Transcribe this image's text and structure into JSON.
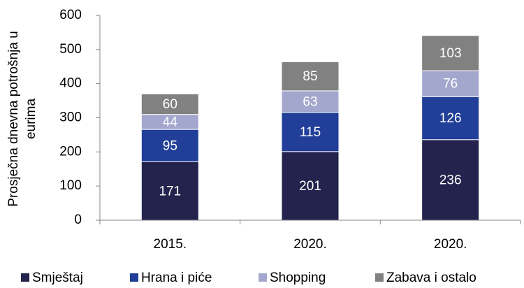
{
  "chart_data": {
    "type": "stacked_bar",
    "ylabel": [
      "Prosječna dnevna potrošnja u",
      "eurima"
    ],
    "categories": [
      "2015.",
      "2020.",
      "2020."
    ],
    "series": [
      {
        "name": "Smještaj",
        "color": "#24234d",
        "values": [
          171,
          201,
          236
        ]
      },
      {
        "name": "Hrana i piće",
        "color": "#213f98",
        "values": [
          95,
          115,
          126
        ]
      },
      {
        "name": "Shopping",
        "color": "#a4a7cd",
        "values": [
          44,
          63,
          76
        ]
      },
      {
        "name": "Zabava i ostalo",
        "color": "#818181",
        "values": [
          60,
          85,
          103
        ]
      }
    ],
    "ylim": [
      0,
      600
    ],
    "yticks": [
      0,
      100,
      200,
      300,
      400,
      500,
      600
    ],
    "legend": "bottom"
  }
}
